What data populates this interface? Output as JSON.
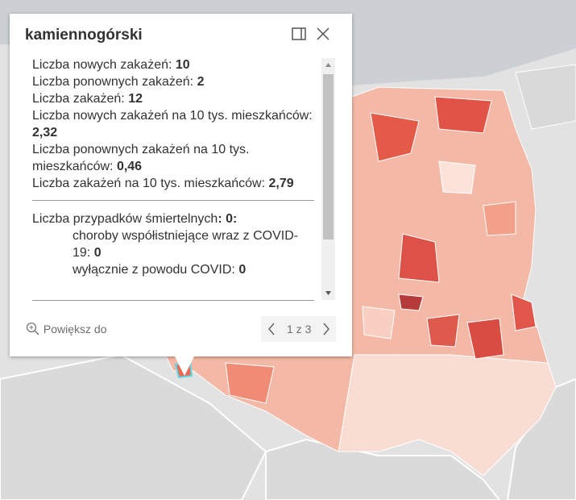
{
  "popup": {
    "title": "kamiennogórski",
    "lines": [
      {
        "label": "Liczba nowych zakażeń:",
        "value": "10"
      },
      {
        "label": "Liczba ponownych zakażeń:",
        "value": "2"
      },
      {
        "label": "Liczba zakażeń:",
        "value": "12"
      },
      {
        "label": "Liczba nowych zakażeń na 10 tys. mieszkańców:",
        "value": "2,32"
      },
      {
        "label": "Liczba ponownych zakażeń na 10 tys. mieszkańców:",
        "value": "0,46"
      },
      {
        "label": "Liczba zakażeń na 10 tys. mieszkańców:",
        "value": "2,79"
      }
    ],
    "deaths": {
      "label": "Liczba przypadków śmiertelnych",
      "value": ": 0:",
      "details": [
        {
          "label": "choroby współistniejące wraz z COVID-19:",
          "value": "0"
        },
        {
          "label": "wyłącznie z powodu COVID:",
          "value": "0"
        }
      ]
    },
    "zoom": "Powiększ do",
    "pager": "1 z 3"
  }
}
